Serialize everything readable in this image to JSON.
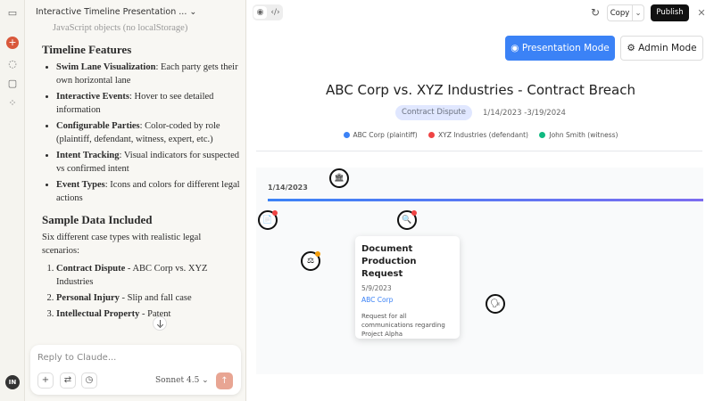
{
  "chat": {
    "title": "Interactive Timeline Presentation ...",
    "faded_line": "JavaScript objects (no localStorage)",
    "h_features": "Timeline Features",
    "features": [
      {
        "bold": "Swim Lane Visualization",
        "text": ": Each party gets their own horizontal lane"
      },
      {
        "bold": "Interactive Events",
        "text": ": Hover to see detailed information"
      },
      {
        "bold": "Configurable Parties",
        "text": ": Color-coded by role (plaintiff, defendant, witness, expert, etc.)"
      },
      {
        "bold": "Intent Tracking",
        "text": ": Visual indicators for suspected vs confirmed intent"
      },
      {
        "bold": "Event Types",
        "text": ": Icons and colors for different legal actions"
      }
    ],
    "h_sample": "Sample Data Included",
    "sample_intro": "Six different case types with realistic legal scenarios:",
    "samples": [
      {
        "bold": "Contract Dispute",
        "text": " - ABC Corp vs. XYZ Industries"
      },
      {
        "bold": "Personal Injury",
        "text": " - Slip and fall case"
      },
      {
        "bold": "Intellectual Property",
        "text": " - Patent"
      }
    ],
    "composer_placeholder": "Reply to Claude...",
    "model": "Sonnet 4.5",
    "avatar": "IN"
  },
  "toolbar": {
    "copy": "Copy",
    "publish": "Publish"
  },
  "app": {
    "presentation_mode": "Presentation Mode",
    "admin_mode": "Admin Mode",
    "title": "ABC Corp vs. XYZ Industries - Contract Breach",
    "badge": "Contract Dispute",
    "range": "1/14/2023 -3/19/2024",
    "legend": [
      {
        "label": "ABC Corp (plaintiff)",
        "color": "#3b82f6"
      },
      {
        "label": "XYZ Industries (defendant)",
        "color": "#ef4444"
      },
      {
        "label": "John Smith (witness)",
        "color": "#10b981"
      }
    ],
    "start_date": "1/14/2023",
    "tooltip": {
      "title": "Document Production Request",
      "date": "5/9/2023",
      "party": "ABC Corp",
      "description": "Request for all communications regarding Project Alpha"
    }
  }
}
